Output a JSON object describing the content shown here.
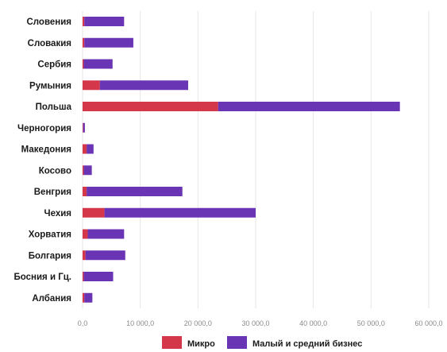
{
  "chart_data": {
    "type": "bar",
    "orientation": "horizontal",
    "stacked": true,
    "categories": [
      "Словения",
      "Словакия",
      "Сербия",
      "Румыния",
      "Польша",
      "Черногория",
      "Македония",
      "Косово",
      "Венгрия",
      "Чехия",
      "Хорватия",
      "Болгария",
      "Босния и Гц.",
      "Албания"
    ],
    "series": [
      {
        "name": "Микро",
        "color": "#d4364a",
        "values": [
          300,
          300,
          200,
          3000,
          23500,
          100,
          700,
          200,
          700,
          3800,
          900,
          500,
          200,
          300
        ]
      },
      {
        "name": "Малый и средний бизнес",
        "color": "#6a35b5",
        "values": [
          6900,
          8500,
          5000,
          15300,
          31500,
          300,
          1200,
          1400,
          16600,
          26200,
          6300,
          6900,
          5100,
          1400
        ]
      }
    ],
    "xlim": [
      0,
      60000
    ],
    "x_ticks": [
      "0,0",
      "10 000,0",
      "20 000,0",
      "30 000,0",
      "40 000,0",
      "50 000,0",
      "60 000,0"
    ],
    "grid": true,
    "legend": "bottom"
  }
}
